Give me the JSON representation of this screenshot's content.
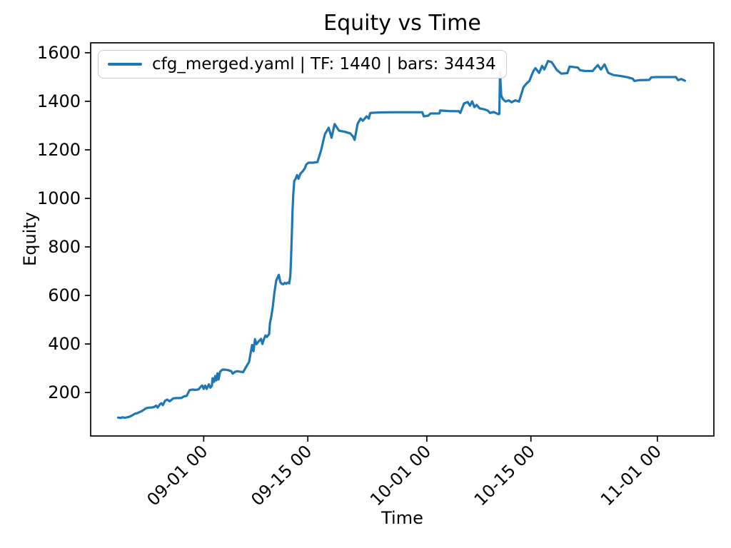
{
  "figure": {
    "title": "Equity vs Time",
    "xlabel": "Time",
    "ylabel": "Equity",
    "background_color": "#ffffff",
    "line_color": "#1f77b4",
    "axis_color": "#000000",
    "legend": {
      "label": "cfg_merged.yaml | TF: 1440 | bars: 34434",
      "border_color": "#cccccc",
      "position": "upper left"
    }
  },
  "chart_data": {
    "type": "line",
    "title": "Equity vs Time",
    "xlabel": "Time",
    "ylabel": "Equity",
    "grid": false,
    "legend_position": "upper left",
    "x_unit": "days relative to 09-01 00:00",
    "xlim": [
      -15.2,
      68.6
    ],
    "ylim": [
      21,
      1641
    ],
    "x_ticks": [
      {
        "d": 0,
        "label": "09-01 00"
      },
      {
        "d": 14,
        "label": "09-15 00"
      },
      {
        "d": 30,
        "label": "10-01 00"
      },
      {
        "d": 44,
        "label": "10-15 00"
      },
      {
        "d": 61,
        "label": "11-01 00"
      }
    ],
    "y_ticks": [
      200,
      400,
      600,
      800,
      1000,
      1200,
      1400,
      1600
    ],
    "series": [
      {
        "name": "cfg_merged.yaml | TF: 1440 | bars: 34434",
        "color": "#1f77b4",
        "points": [
          [
            -11.5,
            97
          ],
          [
            -11.2,
            95
          ],
          [
            -10.9,
            98
          ],
          [
            -10.6,
            96
          ],
          [
            -10.3,
            98
          ],
          [
            -10.1,
            99
          ],
          [
            -9.8,
            103
          ],
          [
            -9.5,
            108
          ],
          [
            -9.3,
            112
          ],
          [
            -9.1,
            114
          ],
          [
            -8.9,
            115
          ],
          [
            -8.6,
            120
          ],
          [
            -8.3,
            124
          ],
          [
            -8.1,
            128
          ],
          [
            -7.9,
            132
          ],
          [
            -7.7,
            136
          ],
          [
            -7.3,
            138
          ],
          [
            -7.0,
            138
          ],
          [
            -6.7,
            140
          ],
          [
            -6.4,
            146
          ],
          [
            -6.2,
            138
          ],
          [
            -5.9,
            151
          ],
          [
            -5.7,
            156
          ],
          [
            -5.5,
            148
          ],
          [
            -5.2,
            166
          ],
          [
            -4.9,
            171
          ],
          [
            -4.6,
            164
          ],
          [
            -4.4,
            168
          ],
          [
            -4.1,
            176
          ],
          [
            -3.7,
            177
          ],
          [
            -3.3,
            177
          ],
          [
            -3.0,
            178
          ],
          [
            -2.7,
            183
          ],
          [
            -2.5,
            185
          ],
          [
            -2.3,
            186
          ],
          [
            -2.1,
            198
          ],
          [
            -1.9,
            210
          ],
          [
            -1.5,
            212
          ],
          [
            -1.1,
            211
          ],
          [
            -0.7,
            213
          ],
          [
            -0.4,
            224
          ],
          [
            -0.2,
            229
          ],
          [
            0.0,
            215
          ],
          [
            0.2,
            229
          ],
          [
            0.4,
            215
          ],
          [
            0.7,
            234
          ],
          [
            0.9,
            220
          ],
          [
            1.1,
            228
          ],
          [
            1.2,
            259
          ],
          [
            1.4,
            244
          ],
          [
            1.55,
            268
          ],
          [
            1.7,
            250
          ],
          [
            1.85,
            279
          ],
          [
            2.0,
            254
          ],
          [
            2.2,
            286
          ],
          [
            2.5,
            294
          ],
          [
            2.9,
            294
          ],
          [
            3.3,
            292
          ],
          [
            3.7,
            288
          ],
          [
            3.9,
            278
          ],
          [
            4.2,
            285
          ],
          [
            4.5,
            288
          ],
          [
            4.9,
            286
          ],
          [
            5.3,
            284
          ],
          [
            5.8,
            311
          ],
          [
            6.1,
            326
          ],
          [
            6.3,
            361
          ],
          [
            6.5,
            396
          ],
          [
            6.7,
            370
          ],
          [
            6.9,
            420
          ],
          [
            7.1,
            399
          ],
          [
            7.4,
            411
          ],
          [
            7.7,
            421
          ],
          [
            7.9,
            400
          ],
          [
            8.0,
            412
          ],
          [
            8.3,
            435
          ],
          [
            8.5,
            429
          ],
          [
            8.8,
            441
          ],
          [
            8.9,
            485
          ],
          [
            9.1,
            515
          ],
          [
            9.3,
            555
          ],
          [
            9.5,
            610
          ],
          [
            9.75,
            661
          ],
          [
            9.9,
            672
          ],
          [
            10.1,
            685
          ],
          [
            10.3,
            655
          ],
          [
            10.5,
            648
          ],
          [
            10.7,
            646
          ],
          [
            10.9,
            652
          ],
          [
            11.1,
            648
          ],
          [
            11.3,
            653
          ],
          [
            11.5,
            650
          ],
          [
            11.65,
            680
          ],
          [
            11.75,
            760
          ],
          [
            11.85,
            850
          ],
          [
            11.95,
            950
          ],
          [
            12.05,
            1020
          ],
          [
            12.18,
            1072
          ],
          [
            12.35,
            1080
          ],
          [
            12.55,
            1096
          ],
          [
            12.75,
            1081
          ],
          [
            13.0,
            1102
          ],
          [
            13.3,
            1111
          ],
          [
            13.6,
            1124
          ],
          [
            13.8,
            1140
          ],
          [
            14.1,
            1147
          ],
          [
            14.7,
            1147
          ],
          [
            15.3,
            1150
          ],
          [
            15.8,
            1199
          ],
          [
            16.1,
            1240
          ],
          [
            16.3,
            1265
          ],
          [
            16.8,
            1291
          ],
          [
            17.2,
            1250
          ],
          [
            17.6,
            1306
          ],
          [
            18.2,
            1279
          ],
          [
            19.0,
            1274
          ],
          [
            19.7,
            1268
          ],
          [
            20.1,
            1254
          ],
          [
            20.3,
            1241
          ],
          [
            20.7,
            1308
          ],
          [
            21.1,
            1329
          ],
          [
            21.4,
            1320
          ],
          [
            21.9,
            1338
          ],
          [
            22.2,
            1329
          ],
          [
            22.4,
            1352
          ],
          [
            23.5,
            1354
          ],
          [
            25.0,
            1355
          ],
          [
            27.0,
            1355
          ],
          [
            29.4,
            1355
          ],
          [
            29.6,
            1338
          ],
          [
            30.2,
            1341
          ],
          [
            30.5,
            1350
          ],
          [
            31.7,
            1350
          ],
          [
            31.8,
            1362
          ],
          [
            33.0,
            1360
          ],
          [
            34.3,
            1359
          ],
          [
            34.5,
            1352
          ],
          [
            35.0,
            1391
          ],
          [
            35.5,
            1397
          ],
          [
            35.8,
            1382
          ],
          [
            36.1,
            1400
          ],
          [
            36.4,
            1376
          ],
          [
            36.7,
            1385
          ],
          [
            37.1,
            1371
          ],
          [
            37.6,
            1368
          ],
          [
            38.2,
            1362
          ],
          [
            38.5,
            1352
          ],
          [
            39.0,
            1356
          ],
          [
            39.6,
            1347
          ],
          [
            39.75,
            1348
          ],
          [
            39.84,
            1520
          ],
          [
            40.0,
            1425
          ],
          [
            40.2,
            1410
          ],
          [
            40.6,
            1399
          ],
          [
            41.0,
            1404
          ],
          [
            41.4,
            1396
          ],
          [
            41.9,
            1404
          ],
          [
            42.4,
            1399
          ],
          [
            42.7,
            1429
          ],
          [
            43.0,
            1458
          ],
          [
            43.4,
            1473
          ],
          [
            43.8,
            1484
          ],
          [
            44.3,
            1523
          ],
          [
            44.6,
            1537
          ],
          [
            45.1,
            1517
          ],
          [
            45.5,
            1546
          ],
          [
            45.8,
            1531
          ],
          [
            46.3,
            1566
          ],
          [
            46.8,
            1561
          ],
          [
            47.5,
            1528
          ],
          [
            48.1,
            1514
          ],
          [
            48.9,
            1516
          ],
          [
            49.2,
            1543
          ],
          [
            50.3,
            1539
          ],
          [
            50.6,
            1528
          ],
          [
            51.3,
            1525
          ],
          [
            52.3,
            1525
          ],
          [
            52.7,
            1540
          ],
          [
            53.0,
            1549
          ],
          [
            53.4,
            1531
          ],
          [
            53.9,
            1552
          ],
          [
            54.4,
            1517
          ],
          [
            55.1,
            1508
          ],
          [
            56.1,
            1504
          ],
          [
            57.0,
            1499
          ],
          [
            57.7,
            1493
          ],
          [
            57.9,
            1484
          ],
          [
            58.5,
            1487
          ],
          [
            59.9,
            1488
          ],
          [
            60.2,
            1499
          ],
          [
            60.9,
            1500
          ],
          [
            63.5,
            1500
          ],
          [
            63.8,
            1487
          ],
          [
            64.2,
            1492
          ],
          [
            64.7,
            1485
          ]
        ]
      }
    ]
  }
}
